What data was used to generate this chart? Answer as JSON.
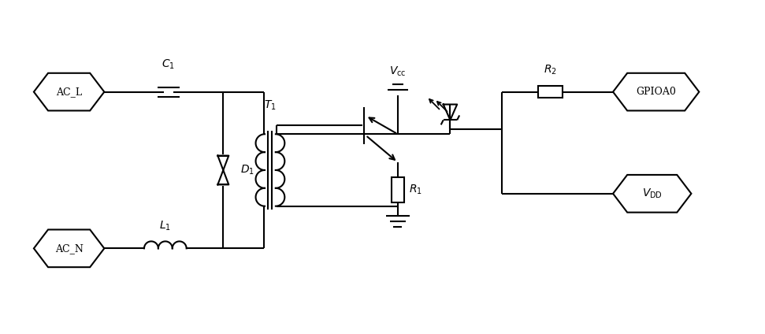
{
  "bg_color": "#ffffff",
  "line_color": "#000000",
  "lw": 1.5,
  "fig_w": 9.71,
  "fig_h": 4.24,
  "dpi": 100,
  "xlim": [
    0,
    9.71
  ],
  "ylim": [
    0,
    4.24
  ],
  "labels": {
    "AC_L": "AC_L",
    "AC_N": "AC_N",
    "C1_text": "$C_1$",
    "L1_text": "$L_1$",
    "D1_text": "$D_1$",
    "T1_text": "$T_1$",
    "Vcc_text": "$V_{\\mathrm{cc}}$",
    "R1_text": "$R_1$",
    "R2_text": "$R_2$",
    "GPIOA0_text": "GPIOA0",
    "VDD_text": "$V_{\\mathrm{DD}}$"
  }
}
